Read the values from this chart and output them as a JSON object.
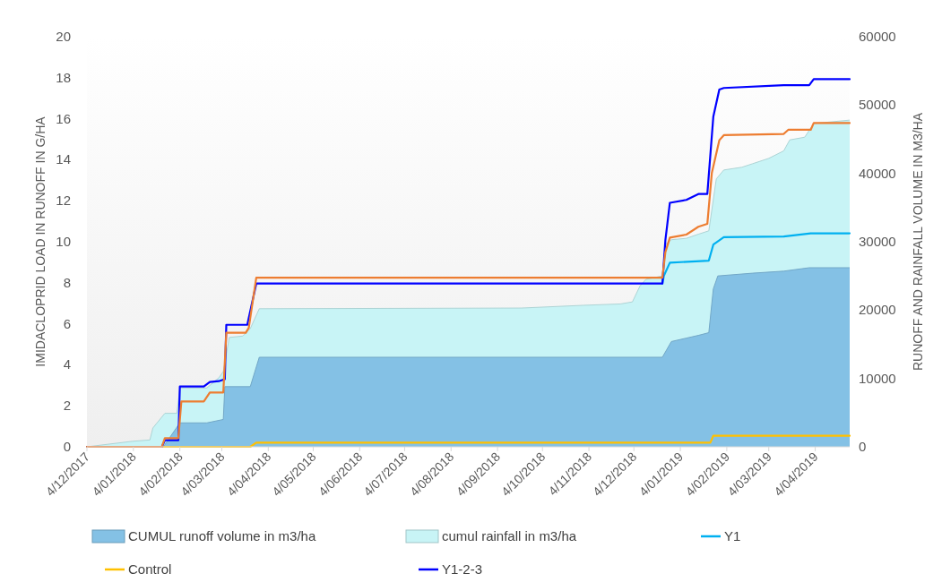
{
  "chart_data": {
    "type": "line",
    "ylabel": "IMIDACLOPRID LOAD IN RUNOFF IN G/HA",
    "y2label": "RUNOFF AND RAINFALL VOLUME IN M3/HA",
    "xlim": [
      "2017-12-04",
      "2019-04-27"
    ],
    "xticks": [
      {
        "value": "2017-12-04",
        "label": "4/12/2017"
      },
      {
        "value": "2018-01-04",
        "label": "4/01/2018"
      },
      {
        "value": "2018-02-04",
        "label": "4/02/2018"
      },
      {
        "value": "2018-03-04",
        "label": "4/03/2018"
      },
      {
        "value": "2018-04-04",
        "label": "4/04/2018"
      },
      {
        "value": "2018-05-04",
        "label": "4/05/2018"
      },
      {
        "value": "2018-06-04",
        "label": "4/06/2018"
      },
      {
        "value": "2018-07-04",
        "label": "4/07/2018"
      },
      {
        "value": "2018-08-04",
        "label": "4/08/2018"
      },
      {
        "value": "2018-09-04",
        "label": "4/09/2018"
      },
      {
        "value": "2018-10-04",
        "label": "4/10/2018"
      },
      {
        "value": "2018-11-04",
        "label": "4/11/2018"
      },
      {
        "value": "2018-12-04",
        "label": "4/12/2018"
      },
      {
        "value": "2019-01-04",
        "label": "4/01/2019"
      },
      {
        "value": "2019-02-04",
        "label": "4/02/2019"
      },
      {
        "value": "2019-03-04",
        "label": "4/03/2019"
      },
      {
        "value": "2019-04-04",
        "label": "4/04/2019"
      }
    ],
    "ylim": [
      0,
      20
    ],
    "yticks": [
      0,
      2,
      4,
      6,
      8,
      10,
      12,
      14,
      16,
      18,
      20
    ],
    "y2lim": [
      0,
      60000
    ],
    "y2ticks": [
      0,
      10000,
      20000,
      30000,
      40000,
      50000,
      60000
    ],
    "grid": false,
    "legend": "bottom",
    "series": [
      {
        "name": "CUMUL runoff volume in m3/ha",
        "type": "area",
        "axis": "y2",
        "color": "#84c1e5",
        "x": [
          "2017-12-04",
          "2018-01-24",
          "2018-02-04",
          "2018-02-22",
          "2018-03-05",
          "2018-03-06",
          "2018-03-23",
          "2018-03-29",
          "2018-12-23",
          "2018-12-29",
          "2019-01-08",
          "2019-01-16",
          "2019-01-23",
          "2019-01-26",
          "2019-01-29",
          "2019-02-21",
          "2019-03-14",
          "2019-03-31",
          "2019-04-27"
        ],
        "values": [
          0,
          0,
          3500,
          3500,
          4000,
          8800,
          8800,
          13100,
          13100,
          15400,
          15900,
          16300,
          16700,
          23100,
          25000,
          25400,
          25700,
          26200,
          26200
        ]
      },
      {
        "name": "cumul rainfall in m3/ha",
        "type": "area",
        "axis": "y2",
        "color": "#c8f4f6",
        "x": [
          "2017-12-04",
          "2018-01-03",
          "2018-01-15",
          "2018-01-17",
          "2018-01-25",
          "2018-02-02",
          "2018-02-04",
          "2018-02-22",
          "2018-03-02",
          "2018-03-05",
          "2018-03-09",
          "2018-03-18",
          "2018-03-23",
          "2018-03-29",
          "2018-09-20",
          "2018-10-31",
          "2018-11-25",
          "2018-12-03",
          "2018-12-08",
          "2018-12-12",
          "2018-12-23",
          "2018-12-25",
          "2018-12-29",
          "2019-01-08",
          "2019-01-16",
          "2019-01-23",
          "2019-01-28",
          "2019-02-02",
          "2019-02-14",
          "2019-02-21",
          "2019-03-04",
          "2019-03-14",
          "2019-03-18",
          "2019-03-28",
          "2019-04-03",
          "2019-04-27"
        ],
        "values": [
          0,
          800,
          1000,
          2750,
          4900,
          4900,
          8600,
          8600,
          10100,
          11000,
          16000,
          16200,
          17300,
          20200,
          20300,
          20700,
          20900,
          21200,
          23500,
          24500,
          25000,
          29600,
          30300,
          30500,
          31100,
          31600,
          39200,
          40500,
          40900,
          41400,
          42200,
          43300,
          44900,
          45300,
          47300,
          47800
        ]
      },
      {
        "name": "Y1",
        "color": "#00b0f0",
        "x": [
          "2018-12-23",
          "2018-12-24",
          "2018-12-28",
          "2019-01-23",
          "2019-01-26",
          "2019-02-02",
          "2019-03-14",
          "2019-04-01",
          "2019-04-27"
        ],
        "values": [
          7.96,
          8.34,
          8.98,
          9.08,
          9.86,
          10.22,
          10.26,
          10.41,
          10.41
        ]
      },
      {
        "name": "Control",
        "color": "#ffc000",
        "x": [
          "2017-12-04",
          "2018-03-23",
          "2018-03-27",
          "2019-01-24",
          "2019-01-26",
          "2019-04-27"
        ],
        "values": [
          0,
          0,
          0.2,
          0.2,
          0.54,
          0.54
        ]
      },
      {
        "name": "Y1-2-3",
        "color": "#0000ff",
        "x": [
          "2017-12-04",
          "2018-01-23",
          "2018-01-25",
          "2018-02-03",
          "2018-02-04",
          "2018-02-20",
          "2018-02-24",
          "2018-03-02",
          "2018-03-06",
          "2018-03-07",
          "2018-03-21",
          "2018-03-27",
          "2018-12-23",
          "2018-12-25",
          "2018-12-28",
          "2019-01-08",
          "2019-01-16",
          "2019-01-22",
          "2019-01-26",
          "2019-01-30",
          "2019-02-02",
          "2019-03-14",
          "2019-03-31",
          "2019-04-03",
          "2019-04-27"
        ],
        "values": [
          0,
          0,
          0.32,
          0.32,
          2.94,
          2.94,
          3.16,
          3.2,
          3.3,
          5.95,
          5.95,
          7.96,
          7.96,
          10.07,
          11.9,
          12.04,
          12.33,
          12.33,
          16.1,
          17.42,
          17.5,
          17.64,
          17.64,
          17.93,
          17.93
        ]
      },
      {
        "color": "#ed7d31",
        "x": [
          "2017-12-04",
          "2018-01-23",
          "2018-01-25",
          "2018-02-03",
          "2018-02-05",
          "2018-02-20",
          "2018-02-24",
          "2018-03-05",
          "2018-03-07",
          "2018-03-20",
          "2018-03-22",
          "2018-03-27",
          "2018-12-23",
          "2018-12-25",
          "2018-12-28",
          "2019-01-08",
          "2019-01-16",
          "2019-01-22",
          "2019-01-25",
          "2019-01-30",
          "2019-02-02",
          "2019-03-14",
          "2019-03-17",
          "2019-04-01",
          "2019-04-03",
          "2019-04-27"
        ],
        "values": [
          0,
          0,
          0.42,
          0.42,
          2.21,
          2.21,
          2.65,
          2.65,
          5.56,
          5.56,
          5.8,
          8.25,
          8.25,
          9.49,
          10.2,
          10.35,
          10.73,
          10.87,
          13.35,
          14.95,
          15.2,
          15.26,
          15.46,
          15.46,
          15.79,
          15.79
        ]
      }
    ]
  }
}
